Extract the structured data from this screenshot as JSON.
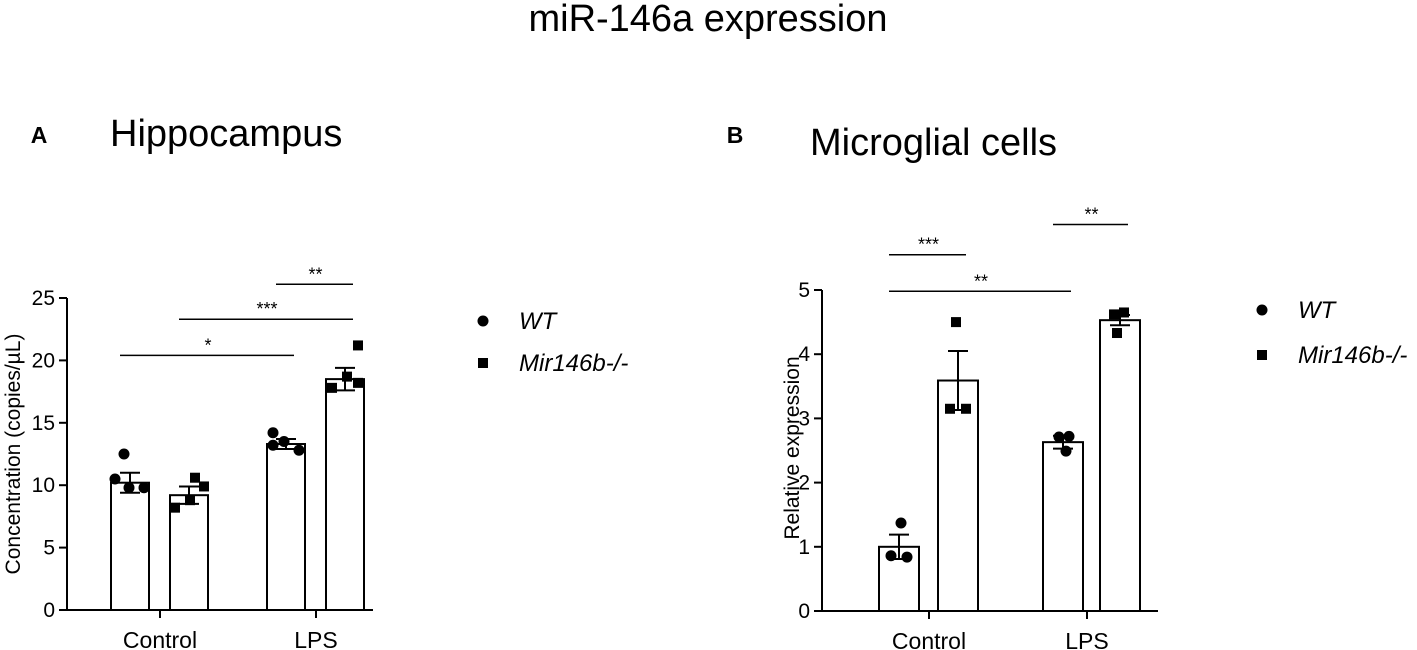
{
  "figure_title": "miR-146a expression",
  "legend": {
    "wt_label": "WT",
    "ko_label": "Mir146b-/-"
  },
  "chart_data": [
    {
      "panel_letter": "A",
      "type": "bar",
      "title": "Hippocampus",
      "xlabel": "",
      "ylabel": "Concentration (copies/µL)",
      "ylim": [
        0,
        25
      ],
      "yticks": [
        0,
        5,
        10,
        15,
        20,
        25
      ],
      "categories": [
        "Control",
        "LPS"
      ],
      "series": [
        {
          "name": "WT",
          "marker": "circle",
          "values": [
            10.2,
            13.3
          ],
          "sem": [
            0.8,
            0.4
          ],
          "points": [
            [
              12.5,
              10.5,
              9.8,
              9.8
            ],
            [
              14.2,
              13.5,
              13.2,
              12.8
            ]
          ]
        },
        {
          "name": "Mir146b-/-",
          "marker": "square",
          "values": [
            9.2,
            18.5
          ],
          "sem": [
            0.7,
            0.9
          ],
          "points": [
            [
              10.6,
              9.9,
              8.8,
              8.2
            ],
            [
              21.2,
              18.7,
              18.2,
              17.8
            ]
          ]
        }
      ],
      "significance": [
        {
          "label": "*",
          "from": [
            0,
            0
          ],
          "to": [
            1,
            0
          ],
          "y": 20.4
        },
        {
          "label": "***",
          "from": [
            0,
            1
          ],
          "to": [
            1,
            1
          ],
          "y": 23.3
        },
        {
          "label": "**",
          "from": [
            1,
            0
          ],
          "to": [
            1,
            1
          ],
          "y": 26.1
        }
      ]
    },
    {
      "panel_letter": "B",
      "type": "bar",
      "title": "Microglial cells",
      "xlabel": "",
      "ylabel": "Relative expression",
      "ylim": [
        0,
        5
      ],
      "yticks": [
        0,
        1,
        2,
        3,
        4,
        5
      ],
      "categories": [
        "Control",
        "LPS"
      ],
      "series": [
        {
          "name": "WT",
          "marker": "circle",
          "values": [
            1.0,
            2.63
          ],
          "sem": [
            0.19,
            0.1
          ],
          "points": [
            [
              1.37,
              0.86,
              0.84
            ],
            [
              2.71,
              2.72,
              2.49
            ]
          ]
        },
        {
          "name": "Mir146b-/-",
          "marker": "square",
          "values": [
            3.59,
            4.53
          ],
          "sem": [
            0.46,
            0.08
          ],
          "points": [
            [
              4.5,
              3.15,
              3.15
            ],
            [
              4.65,
              4.62,
              4.33
            ]
          ]
        }
      ],
      "significance": [
        {
          "label": "**",
          "from": [
            0,
            0
          ],
          "to": [
            1,
            0
          ],
          "y": 4.98
        },
        {
          "label": "***",
          "from": [
            0,
            0
          ],
          "to": [
            0,
            1
          ],
          "y": 5.55
        },
        {
          "label": "**",
          "from": [
            1,
            0
          ],
          "to": [
            1,
            1
          ],
          "y": 6.02
        }
      ]
    }
  ]
}
